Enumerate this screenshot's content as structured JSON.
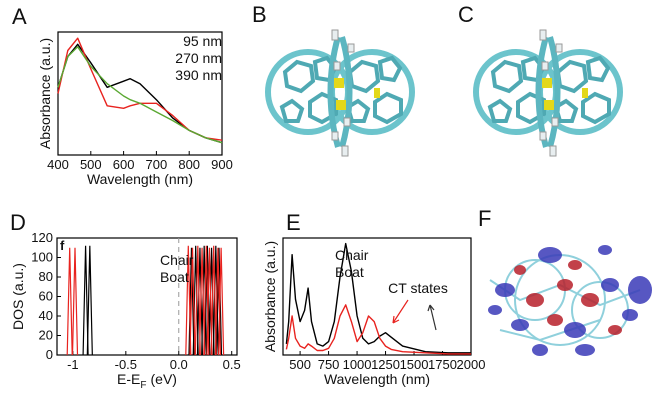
{
  "chart_data": [
    {
      "type": "line",
      "label": "A",
      "xlabel": "Wavelength (nm)",
      "ylabel": "Absorbance (a.u.)",
      "xlim": [
        400,
        900
      ],
      "xticks": [
        400,
        500,
        600,
        700,
        800,
        900
      ],
      "ylim": [
        0,
        1
      ],
      "x": [
        400,
        430,
        460,
        500,
        550,
        600,
        620,
        650,
        700,
        750,
        800,
        850,
        900
      ],
      "series": [
        {
          "name": "95 nm",
          "color": "#000000",
          "values": [
            0.55,
            0.8,
            0.9,
            0.75,
            0.55,
            0.6,
            0.62,
            0.58,
            0.45,
            0.3,
            0.2,
            0.14,
            0.1
          ]
        },
        {
          "name": "270 nm",
          "color": "#e8231f",
          "values": [
            0.5,
            0.85,
            0.95,
            0.7,
            0.4,
            0.38,
            0.4,
            0.42,
            0.42,
            0.32,
            0.2,
            0.14,
            0.12
          ]
        },
        {
          "name": "390 nm",
          "color": "#5aa832",
          "values": [
            0.55,
            0.8,
            0.88,
            0.72,
            0.58,
            0.48,
            0.45,
            0.42,
            0.35,
            0.28,
            0.2,
            0.14,
            0.1
          ]
        }
      ]
    },
    {
      "type": "stick",
      "label": "D",
      "corner_label": "f",
      "xlabel": "E-E",
      "xlabel_sub": "F",
      "xlabel_unit": "(eV)",
      "ylabel": "DOS (a.u.)",
      "xlim": [
        -1.15,
        0.55
      ],
      "xticks": [
        -1,
        -0.5,
        {
          "value": 0,
          "label": "0.0"
        },
        0.5
      ],
      "ylim": [
        0,
        120
      ],
      "yticks": [
        0,
        20,
        40,
        60,
        80,
        100,
        120
      ],
      "series": [
        {
          "name": "Chair",
          "color": "#000000",
          "x": [
            -0.88,
            -0.84,
            0.12,
            0.16,
            0.2,
            0.24,
            0.27,
            0.31,
            0.35,
            0.38
          ],
          "values": [
            112,
            112,
            110,
            112,
            110,
            112,
            112,
            110,
            112,
            110
          ]
        },
        {
          "name": "Boat",
          "color": "#e8231f",
          "x": [
            -1.03,
            -0.98,
            0.09,
            0.13,
            0.18,
            0.22,
            0.26,
            0.29,
            0.33,
            0.37,
            0.4
          ],
          "values": [
            110,
            110,
            112,
            110,
            112,
            110,
            112,
            110,
            112,
            110,
            110
          ]
        }
      ]
    },
    {
      "type": "line",
      "label": "E",
      "xlabel": "Wavelength (nm)",
      "ylabel": "Absorbance (a.u.)",
      "annotation": "CT states",
      "xlim": [
        350,
        2000
      ],
      "xticks": [
        500,
        750,
        1000,
        1250,
        1500,
        1750,
        2000
      ],
      "ylim": [
        0,
        1.05
      ],
      "x": [
        380,
        400,
        430,
        460,
        500,
        540,
        570,
        600,
        650,
        700,
        750,
        800,
        850,
        900,
        950,
        1000,
        1050,
        1100,
        1150,
        1200,
        1250,
        1300,
        1400,
        1600,
        1800,
        2000
      ],
      "series": [
        {
          "name": "Chair",
          "color": "#000000",
          "values": [
            0.1,
            0.3,
            0.9,
            0.5,
            0.3,
            0.4,
            0.6,
            0.3,
            0.1,
            0.08,
            0.12,
            0.3,
            0.7,
            1.0,
            0.75,
            0.35,
            0.15,
            0.1,
            0.12,
            0.17,
            0.2,
            0.16,
            0.08,
            0.03,
            0.02,
            0.02
          ]
        },
        {
          "name": "Boat",
          "color": "#e8231f",
          "values": [
            0.05,
            0.15,
            0.35,
            0.15,
            0.08,
            0.06,
            0.1,
            0.08,
            0.04,
            0.04,
            0.06,
            0.15,
            0.35,
            0.45,
            0.3,
            0.12,
            0.2,
            0.35,
            0.3,
            0.15,
            0.08,
            0.05,
            0.03,
            0.02,
            0.01,
            0.01
          ]
        }
      ]
    }
  ],
  "images": [
    {
      "label": "B"
    },
    {
      "label": "C"
    },
    {
      "label": "F"
    }
  ]
}
